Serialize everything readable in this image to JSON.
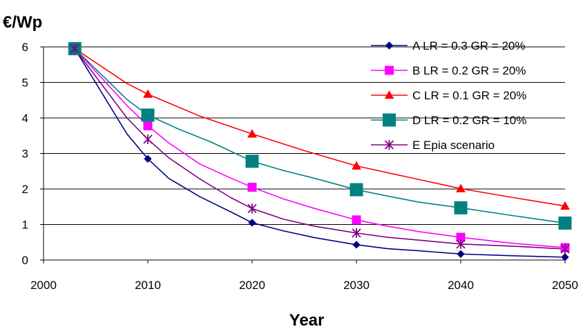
{
  "chart_data": {
    "type": "line",
    "title": "",
    "xlabel": "Year",
    "ylabel": "€/Wp",
    "xlim": [
      2000,
      2050
    ],
    "ylim": [
      0,
      6
    ],
    "xticks": [
      2000,
      2010,
      2020,
      2030,
      2040,
      2050
    ],
    "yticks": [
      0,
      1,
      2,
      3,
      4,
      5,
      6
    ],
    "grid": "horizontal",
    "legend_position": "top-right",
    "series": [
      {
        "name": "A  LR = 0.3  GR = 20%",
        "color": "#000080",
        "marker": "diamond",
        "x": [
          2003,
          2008,
          2010,
          2012,
          2015,
          2018,
          2020,
          2023,
          2026,
          2030,
          2033,
          2036,
          2040,
          2045,
          2050
        ],
        "y": [
          5.95,
          3.55,
          2.85,
          2.3,
          1.78,
          1.35,
          1.05,
          0.82,
          0.63,
          0.43,
          0.32,
          0.26,
          0.17,
          0.12,
          0.08
        ],
        "marker_x": [
          2003,
          2010,
          2020,
          2030,
          2040,
          2050
        ],
        "marker_y": [
          5.95,
          2.85,
          1.05,
          0.43,
          0.17,
          0.08
        ]
      },
      {
        "name": "B  LR = 0.2  GR = 20%",
        "color": "#ff00ff",
        "marker": "square",
        "x": [
          2003,
          2008,
          2010,
          2012,
          2015,
          2018,
          2020,
          2023,
          2026,
          2030,
          2033,
          2036,
          2040,
          2045,
          2050
        ],
        "y": [
          5.95,
          4.35,
          3.78,
          3.3,
          2.7,
          2.3,
          2.05,
          1.72,
          1.45,
          1.13,
          0.95,
          0.8,
          0.64,
          0.47,
          0.35
        ],
        "marker_x": [
          2003,
          2010,
          2020,
          2030,
          2040,
          2050
        ],
        "marker_y": [
          5.95,
          3.78,
          2.05,
          1.13,
          0.64,
          0.35
        ]
      },
      {
        "name": "C  LR = 0.1  GR = 20%",
        "color": "#ff0000",
        "marker": "triangle",
        "x": [
          2003,
          2008,
          2010,
          2015,
          2020,
          2025,
          2030,
          2035,
          2040,
          2045,
          2050
        ],
        "y": [
          5.95,
          4.97,
          4.67,
          4.05,
          3.55,
          3.08,
          2.65,
          2.33,
          2.01,
          1.76,
          1.52
        ],
        "marker_x": [
          2003,
          2010,
          2020,
          2030,
          2040,
          2050
        ],
        "marker_y": [
          5.95,
          4.67,
          3.55,
          2.65,
          2.01,
          1.52
        ]
      },
      {
        "name": "D  LR = 0.2  GR = 10%",
        "color": "#008080",
        "marker": "square",
        "x": [
          2003,
          2008,
          2010,
          2013,
          2016,
          2020,
          2023,
          2026,
          2030,
          2033,
          2036,
          2040,
          2045,
          2050
        ],
        "y": [
          5.95,
          4.52,
          4.08,
          3.68,
          3.33,
          2.78,
          2.52,
          2.3,
          1.98,
          1.8,
          1.63,
          1.47,
          1.25,
          1.04
        ],
        "marker_x": [
          2003,
          2010,
          2020,
          2030,
          2040,
          2050
        ],
        "marker_y": [
          5.95,
          4.08,
          2.78,
          1.98,
          1.47,
          1.04
        ]
      },
      {
        "name": "E  Epia scenario",
        "color": "#800080",
        "marker": "asterisk",
        "x": [
          2003,
          2008,
          2010,
          2012,
          2015,
          2018,
          2020,
          2023,
          2026,
          2030,
          2033,
          2036,
          2040,
          2045,
          2050
        ],
        "y": [
          5.95,
          4.0,
          3.4,
          2.88,
          2.28,
          1.75,
          1.45,
          1.15,
          0.95,
          0.76,
          0.64,
          0.56,
          0.45,
          0.39,
          0.31
        ],
        "marker_x": [
          2003,
          2010,
          2020,
          2030,
          2040,
          2050
        ],
        "marker_y": [
          5.95,
          3.4,
          1.45,
          0.76,
          0.45,
          0.31
        ]
      }
    ]
  }
}
